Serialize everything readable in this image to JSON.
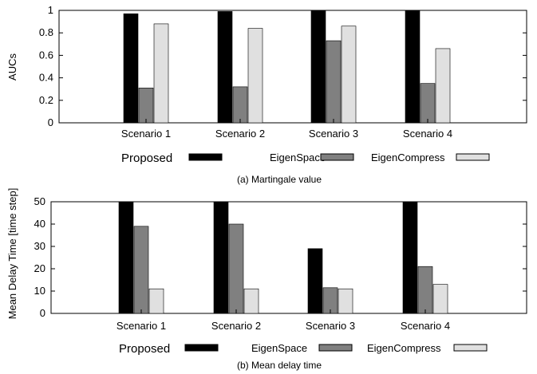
{
  "chart_data": [
    {
      "type": "bar",
      "title": "",
      "xlabel": "",
      "ylabel": "AUCs",
      "caption": "(a) Martingale value",
      "categories": [
        "Scenario 1",
        "Scenario 2",
        "Scenario 3",
        "Scenario 4"
      ],
      "ylim": [
        0,
        1
      ],
      "yticks": [
        "0",
        "0.2",
        "0.4",
        "0.6",
        "0.8",
        "1"
      ],
      "grid": false,
      "legend_position": "below",
      "series": [
        {
          "name": "Proposed",
          "color": "#000000",
          "values": [
            0.97,
            0.99,
            1.0,
            1.0
          ]
        },
        {
          "name": "EigenSpace",
          "color": "#808080",
          "values": [
            0.31,
            0.32,
            0.73,
            0.35
          ]
        },
        {
          "name": "EigenCompress",
          "color": "#e0e0e0",
          "values": [
            0.88,
            0.84,
            0.86,
            0.66
          ]
        }
      ]
    },
    {
      "type": "bar",
      "title": "",
      "xlabel": "",
      "ylabel": "Mean Delay Time [time step]",
      "caption": "(b) Mean delay time",
      "categories": [
        "Scenario 1",
        "Scenario 2",
        "Scenario 3",
        "Scenario 4"
      ],
      "ylim": [
        0,
        50
      ],
      "yticks": [
        "0",
        "10",
        "20",
        "30",
        "40",
        "50"
      ],
      "grid": false,
      "legend_position": "below",
      "series": [
        {
          "name": "Proposed",
          "color": "#000000",
          "values": [
            50,
            50,
            29,
            50
          ]
        },
        {
          "name": "EigenSpace",
          "color": "#808080",
          "values": [
            39,
            40,
            11.5,
            21
          ]
        },
        {
          "name": "EigenCompress",
          "color": "#e0e0e0",
          "values": [
            11,
            11,
            11,
            13
          ]
        }
      ]
    }
  ]
}
